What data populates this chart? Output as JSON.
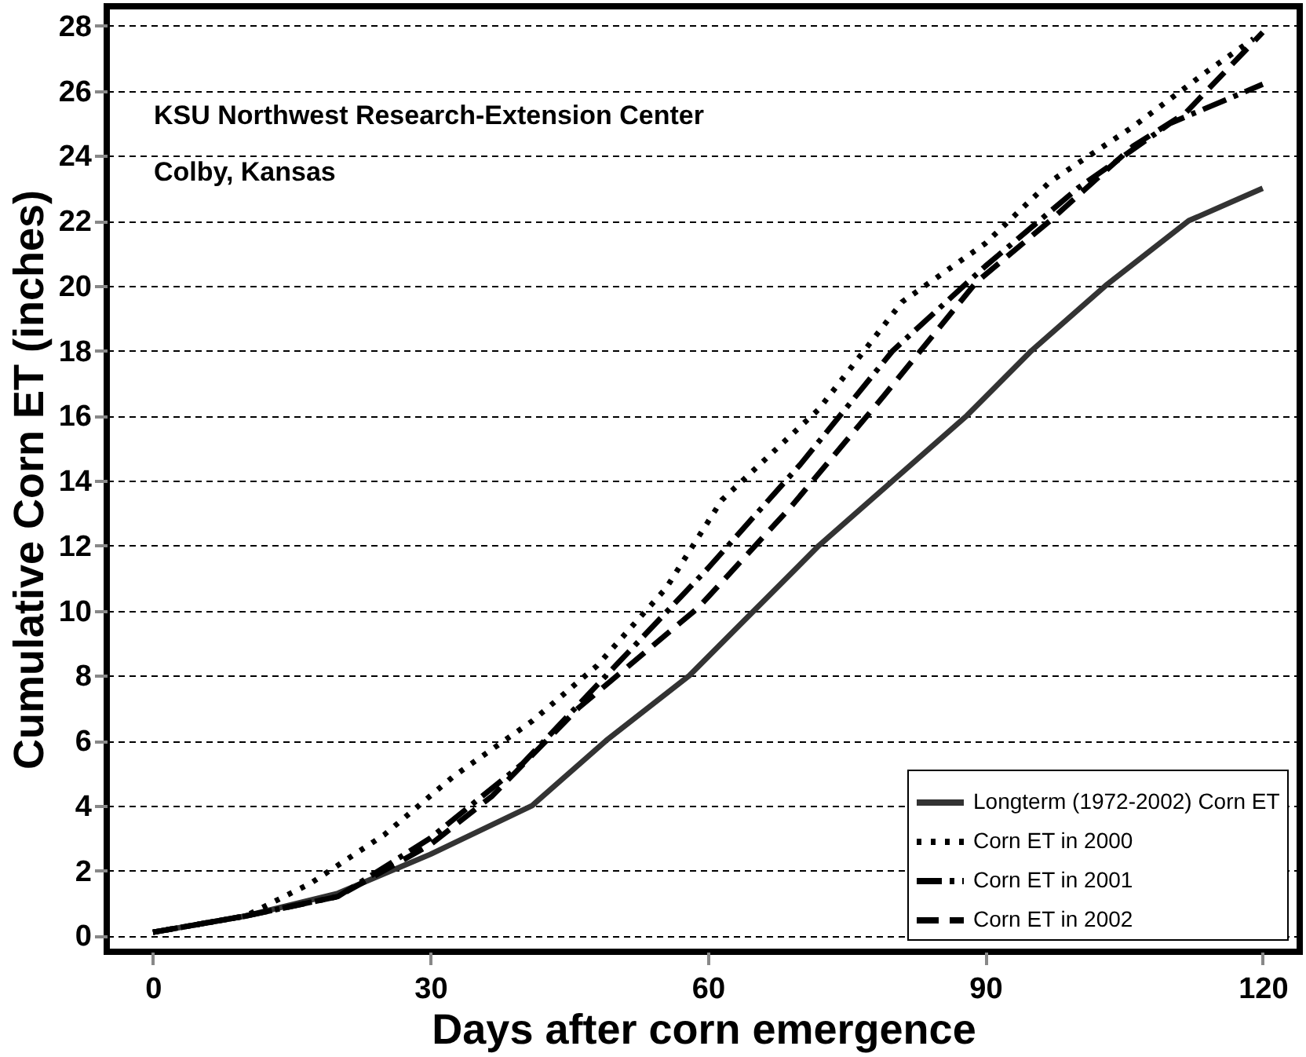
{
  "chart_data": {
    "type": "line",
    "xlabel": "Days after corn emergence",
    "ylabel": "Cumulative Corn ET (inches)",
    "annotations": [
      "KSU Northwest Research-Extension Center",
      "Colby, Kansas"
    ],
    "xlim": [
      -5,
      124
    ],
    "xticks": [
      0,
      30,
      60,
      90,
      120
    ],
    "ylim": [
      -0.5,
      28.6
    ],
    "yticks": [
      0,
      2,
      4,
      6,
      8,
      10,
      12,
      14,
      16,
      18,
      20,
      22,
      24,
      26,
      28
    ],
    "grid": "y",
    "legend": "bottom right",
    "series": [
      {
        "name": "Longterm (1972-2002) Corn ET",
        "color": "#333333",
        "line_style": "solid",
        "x": [
          0,
          10,
          20,
          30,
          41,
          49,
          58,
          65,
          72,
          80,
          88,
          95,
          103,
          112,
          120
        ],
        "values": [
          0.1,
          0.6,
          1.3,
          2.5,
          4,
          6,
          8,
          10,
          12,
          14,
          16,
          18,
          20,
          22,
          23
        ]
      },
      {
        "name": "Corn ET in 2000",
        "color": "#000000",
        "line_style": "dotted",
        "x": [
          0,
          10,
          17,
          25,
          32.5,
          41,
          48,
          55.5,
          61.5,
          72,
          81,
          90,
          97,
          106,
          114,
          119
        ],
        "values": [
          0.1,
          0.6,
          1.6,
          3.1,
          4.9,
          6.6,
          8.3,
          10.7,
          13.4,
          16.2,
          19.5,
          21.3,
          23.2,
          24.9,
          26.6,
          27.6
        ]
      },
      {
        "name": "Corn ET in 2001",
        "color": "#000000",
        "line_style": "dashdot",
        "x": [
          0,
          10,
          20,
          30,
          40,
          50,
          60,
          70,
          80,
          90,
          100,
          110,
          120
        ],
        "values": [
          0.1,
          0.6,
          1.2,
          3.0,
          5.3,
          8.3,
          11.3,
          14.5,
          18,
          20.6,
          23,
          25,
          26.2
        ]
      },
      {
        "name": "Corn ET in 2002",
        "color": "#000000",
        "line_style": "dashed",
        "x": [
          0,
          10,
          20,
          30,
          36.7,
          46,
          59,
          69,
          79,
          89,
          97,
          106,
          111.6,
          120
        ],
        "values": [
          0.1,
          0.6,
          1.2,
          2.8,
          4.3,
          7,
          10.1,
          13.2,
          16.6,
          20.1,
          22,
          24.3,
          25.3,
          27.8
        ]
      }
    ]
  }
}
